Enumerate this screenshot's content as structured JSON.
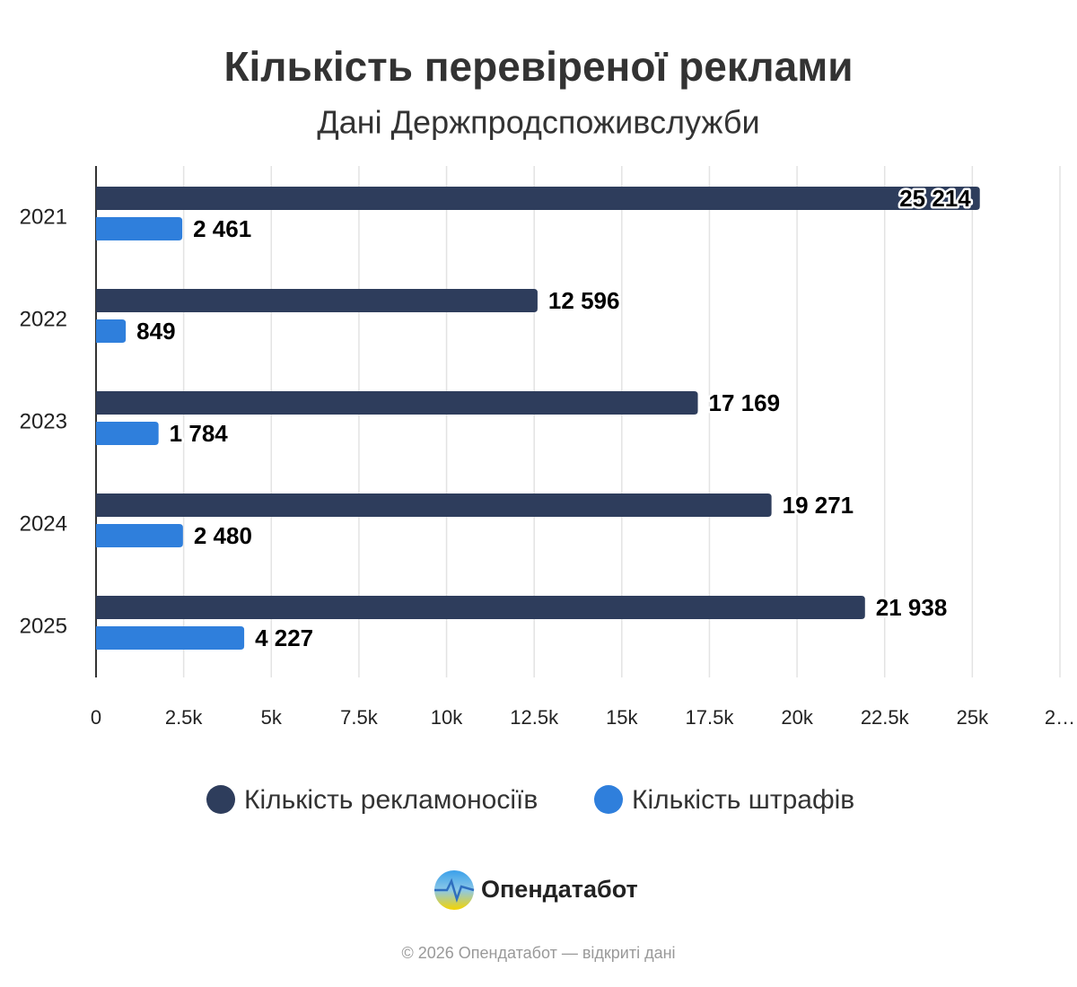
{
  "chart_data": {
    "type": "hbar",
    "title": "Кількість перевіреної реклами",
    "subtitle": "Дані Держпродспоживслужби",
    "categories": [
      "2021",
      "2022",
      "2023",
      "2024",
      "2025"
    ],
    "series": [
      {
        "name": "Кількість рекламоносіїв",
        "color": "#2e3d5c",
        "values": [
          25214,
          12596,
          17169,
          19271,
          21938
        ],
        "value_labels": [
          "25 214",
          "12 596",
          "17 169",
          "19 271",
          "21 938"
        ]
      },
      {
        "name": "Кількість штрафів",
        "color": "#2f7fdc",
        "values": [
          2461,
          849,
          1784,
          2480,
          4227
        ],
        "value_labels": [
          "2 461",
          "849",
          "1 784",
          "2 480",
          "4 227"
        ]
      }
    ],
    "xlim": [
      0,
      27500
    ],
    "xticks": [
      0,
      {
        "value": 2500,
        "label": "2.5k"
      },
      {
        "value": 5000,
        "label": "5k"
      },
      {
        "value": 7500,
        "label": "7.5k"
      },
      {
        "value": 10000,
        "label": "10k"
      },
      {
        "value": 12500,
        "label": "12.5k"
      },
      {
        "value": 15000,
        "label": "15k"
      },
      {
        "value": 17500,
        "label": "17.5k"
      },
      {
        "value": 20000,
        "label": "20k"
      },
      {
        "value": 22500,
        "label": "22.5k"
      },
      {
        "value": 25000,
        "label": "25k"
      },
      {
        "value": 27500,
        "label": "2…"
      }
    ],
    "grid": true,
    "legend": "bottom"
  },
  "branding": {
    "logo": "Опендатабот",
    "footer": "© 2026 Опендатабот — відкриті дані"
  }
}
